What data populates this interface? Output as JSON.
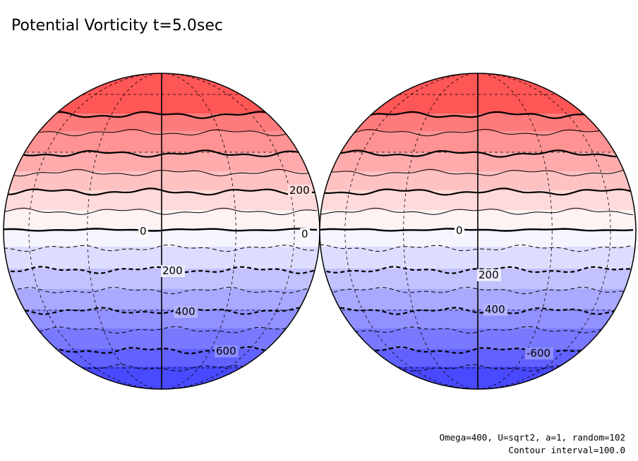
{
  "title": "Potential Vorticity t=5.0sec",
  "params": "Omega=400, U=sqrt2, a=1, random=102",
  "contour_interval": "Contour interval=100.0",
  "colors": {
    "north_pole": "#ff3c3c",
    "mid_north": "#ffc8c8",
    "equator": "#ffffff",
    "mid_south": "#c8c8ff",
    "south_pole": "#3c3cff",
    "line": "#000000"
  },
  "hemispheres": [
    {
      "name": "left-globe",
      "labels": [
        {
          "name": "label-200-north",
          "text": "200"
        },
        {
          "name": "label-0",
          "text": "0"
        },
        {
          "name": "label-0-edge",
          "text": "0"
        },
        {
          "name": "label-200-south",
          "text": "200"
        },
        {
          "name": "label-400-south",
          "text": "400"
        },
        {
          "name": "label-600-south",
          "text": "600"
        }
      ]
    },
    {
      "name": "right-globe",
      "labels": [
        {
          "name": "label-0",
          "text": "0"
        },
        {
          "name": "label-200-south",
          "text": "200"
        },
        {
          "name": "label-400-south",
          "text": "400"
        },
        {
          "name": "label-600-south",
          "text": "-600"
        }
      ]
    }
  ]
}
